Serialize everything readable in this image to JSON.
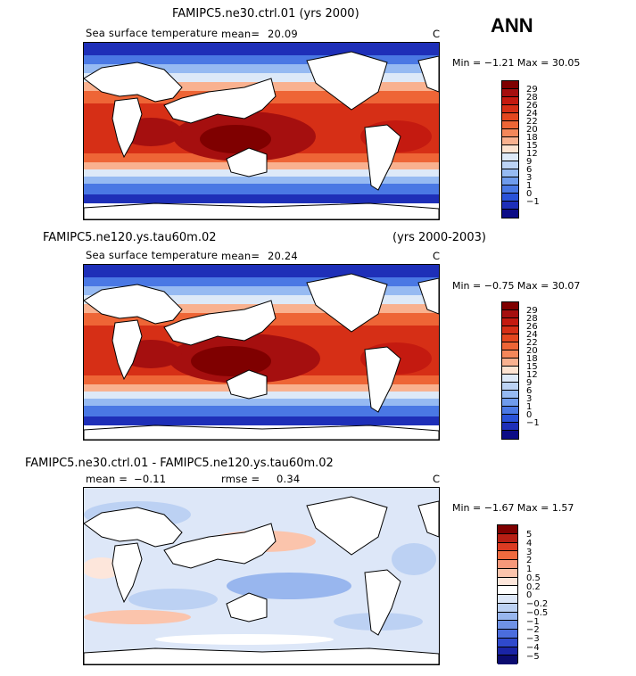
{
  "ann_label": "ANN",
  "panels": [
    {
      "title": "FAMIPC5.ne30.ctrl.01 (yrs 2000)",
      "subtitle": "Sea surface temperature",
      "mean_label": "mean=",
      "mean_value": "20.09",
      "units": "C",
      "minmax": "Min =  −1.21 Max =  30.05",
      "ticks": [
        "29",
        "28",
        "26",
        "24",
        "22",
        "20",
        "18",
        "15",
        "12",
        "9",
        "6",
        "3",
        "1",
        "0",
        "−1"
      ]
    },
    {
      "title_left": "FAMIPC5.ne120.ys.tau60m.02",
      "title_right": "(yrs 2000-2003)",
      "subtitle": "Sea surface temperature",
      "mean_label": "mean=",
      "mean_value": "20.24",
      "units": "C",
      "minmax": "Min =  −0.75 Max =  30.07",
      "ticks": [
        "29",
        "28",
        "26",
        "24",
        "22",
        "20",
        "18",
        "15",
        "12",
        "9",
        "6",
        "3",
        "1",
        "0",
        "−1"
      ]
    },
    {
      "title": "FAMIPC5.ne30.ctrl.01 - FAMIPC5.ne120.ys.tau60m.02",
      "mean_label": "mean =",
      "mean_value": "−0.11",
      "rmse_label": "rmse =",
      "rmse_value": "0.34",
      "units": "C",
      "minmax": "Min =  −1.67 Max =   1.57",
      "ticks": [
        "5",
        "4",
        "3",
        "2",
        "1",
        "0.5",
        "0.2",
        "0",
        "−0.2",
        "−0.5",
        "−1",
        "−2",
        "−3",
        "−4",
        "−5"
      ]
    }
  ],
  "colors": {
    "sst_scale": [
      "#7f0000",
      "#a50f0f",
      "#c41a10",
      "#d62f16",
      "#e4471f",
      "#ee6536",
      "#f4875a",
      "#f9b18f",
      "#fde3d1",
      "#dde9f8",
      "#bcd3f5",
      "#96baf2",
      "#6f9bec",
      "#4a78e4",
      "#2a52d8",
      "#1e2fb8",
      "#0c0c86"
    ],
    "diff_scale": [
      "#7f0000",
      "#b71f14",
      "#dc3b22",
      "#ef6a3e",
      "#f6987a",
      "#fbc4ac",
      "#fde6db",
      "#ffffff",
      "#dde7f8",
      "#bcd1f3",
      "#98b6ee",
      "#6f92e6",
      "#4b6ddd",
      "#2f49cc",
      "#1a24a6",
      "#0b0b70"
    ],
    "land": "#ffffff"
  }
}
